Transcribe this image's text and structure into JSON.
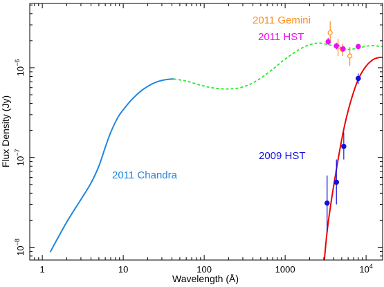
{
  "chart_data": {
    "type": "line",
    "xscale": "log",
    "yscale": "log",
    "xlim": [
      0.7,
      16000
    ],
    "ylim": [
      7.2e-09,
      5.2e-06
    ],
    "xlabel": "Wavelength (Å)",
    "ylabel": "Flux Density (Jy)",
    "grid": false,
    "x_ticks": [
      {
        "value": 1,
        "label": "1"
      },
      {
        "value": 10,
        "label": "10"
      },
      {
        "value": 100,
        "label": "100"
      },
      {
        "value": 1000,
        "label": "1000"
      },
      {
        "value": 10000,
        "label": "10",
        "exp": "4"
      }
    ],
    "y_ticks": [
      {
        "value": 1e-08,
        "label": "10",
        "exp": "−8"
      },
      {
        "value": 1e-07,
        "label": "10",
        "exp": "−7"
      },
      {
        "value": 1e-06,
        "label": "10",
        "exp": "−6"
      }
    ],
    "series": [
      {
        "name": "2011 Chandra",
        "style": "solid",
        "color": "#1f86e0",
        "points": [
          [
            1.25,
            8.8e-09
          ],
          [
            2.0,
            1.9e-08
          ],
          [
            3.0,
            3.4e-08
          ],
          [
            4.0,
            5.2e-08
          ],
          [
            5.0,
            8e-08
          ],
          [
            6.0,
            1.3e-07
          ],
          [
            7.0,
            1.9e-07
          ],
          [
            8.5,
            2.75e-07
          ],
          [
            10.0,
            3.4e-07
          ],
          [
            13.0,
            4.5e-07
          ],
          [
            17.0,
            5.6e-07
          ],
          [
            22.0,
            6.5e-07
          ],
          [
            28.0,
            7.1e-07
          ],
          [
            35.0,
            7.4e-07
          ],
          [
            42.0,
            7.5e-07
          ]
        ]
      },
      {
        "name": "",
        "style": "dashed",
        "color": "#22ee22",
        "points": [
          [
            42.0,
            7.5e-07
          ],
          [
            60.0,
            7.1e-07
          ],
          [
            90.0,
            6.4e-07
          ],
          [
            130.0,
            5.95e-07
          ],
          [
            200.0,
            5.8e-07
          ],
          [
            300.0,
            6.1e-07
          ],
          [
            450.0,
            7.2e-07
          ],
          [
            700.0,
            9.6e-07
          ],
          [
            1000.0,
            1.25e-06
          ],
          [
            1500.0,
            1.6e-06
          ],
          [
            2000.0,
            1.8e-06
          ],
          [
            2500.0,
            1.88e-06
          ],
          [
            3000.0,
            1.85e-06
          ],
          [
            4000.0,
            1.75e-06
          ],
          [
            5000.0,
            1.66e-06
          ],
          [
            6000.0,
            1.6e-06
          ],
          [
            7000.0,
            1.62e-06
          ],
          [
            8500.0,
            1.68e-06
          ],
          [
            10000.0,
            1.73e-06
          ],
          [
            12000.0,
            1.76e-06
          ],
          [
            16000.0,
            1.72e-06
          ]
        ]
      },
      {
        "name": "",
        "style": "solid",
        "color": "#ee0000",
        "points": [
          [
            3050.0,
            7.2e-09
          ],
          [
            3300.0,
            1.5e-08
          ],
          [
            3700.0,
            3.2e-08
          ],
          [
            4200.0,
            6.5e-08
          ],
          [
            4800.0,
            1.3e-07
          ],
          [
            5500.0,
            2.4e-07
          ],
          [
            6500.0,
            4.3e-07
          ],
          [
            7800.0,
            7e-07
          ],
          [
            9500.0,
            9.8e-07
          ],
          [
            12000.0,
            1.22e-06
          ],
          [
            14500.0,
            1.3e-06
          ],
          [
            16000.0,
            1.3e-06
          ]
        ]
      },
      {
        "name": "2011 Gemini",
        "type": "scatter",
        "marker": "open-circle",
        "color": "#ff8c1a",
        "points": [
          {
            "x": 3600,
            "y": 2.45e-06,
            "ylo": 1.85e-06,
            "yhi": 3.3e-06
          },
          {
            "x": 4500,
            "y": 1.7e-06,
            "ylo": 1.35e-06,
            "yhi": 2.1e-06
          },
          {
            "x": 5100,
            "y": 1.6e-06,
            "ylo": 1.35e-06,
            "yhi": 1.85e-06
          },
          {
            "x": 6300,
            "y": 1.35e-06,
            "ylo": 1.05e-06,
            "yhi": 1.7e-06
          }
        ]
      },
      {
        "name": "2011 HST",
        "type": "scatter",
        "marker": "filled-circle",
        "color": "#ee11ee",
        "points": [
          {
            "x": 3400,
            "y": 1.95e-06,
            "ylo": 1.8e-06,
            "yhi": 2.15e-06
          },
          {
            "x": 4300,
            "y": 1.75e-06,
            "ylo": 1.6e-06,
            "yhi": 1.9e-06
          },
          {
            "x": 5200,
            "y": 1.62e-06,
            "ylo": 1.5e-06,
            "yhi": 1.75e-06
          },
          {
            "x": 8000,
            "y": 1.72e-06,
            "ylo": 1.6e-06,
            "yhi": 1.85e-06
          }
        ]
      },
      {
        "name": "2009 HST",
        "type": "scatter",
        "marker": "filled-circle",
        "color": "#1111dd",
        "points": [
          {
            "x": 3300,
            "y": 3.1e-08,
            "ylo": 1.5e-08,
            "yhi": 6.3e-08
          },
          {
            "x": 4300,
            "y": 5.3e-08,
            "ylo": 3e-08,
            "yhi": 9.5e-08
          },
          {
            "x": 5300,
            "y": 1.33e-07,
            "ylo": 9.5e-08,
            "yhi": 1.9e-07
          },
          {
            "x": 8000,
            "y": 7.6e-07,
            "ylo": 6.6e-07,
            "yhi": 8.6e-07
          }
        ]
      }
    ],
    "annotations": [
      {
        "text": "2011 Gemini",
        "color": "#ff8c1a"
      },
      {
        "text": "2011 HST",
        "color": "#ee11ee"
      },
      {
        "text": "2009 HST",
        "color": "#1111dd"
      },
      {
        "text": "2011 Chandra",
        "color": "#1f86e0"
      }
    ]
  }
}
